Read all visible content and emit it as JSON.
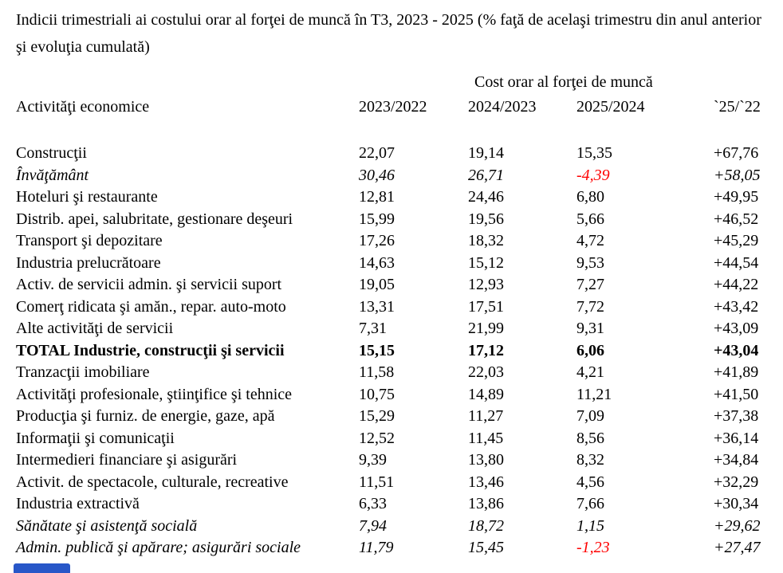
{
  "title": "Indicii trimestriali ai costului orar al forţei de muncă în T3, 2023 - 2025 (% faţă de acelaşi trimestru din anul anterior şi evoluţia cumulată)",
  "table": {
    "group_header": "Cost orar al forţei de muncă",
    "columns": [
      "Activităţi economice",
      "2023/2022",
      "2024/2023",
      "2025/2024",
      "`25/`22"
    ],
    "rows": [
      {
        "label": "Construcţii",
        "v1": "22,07",
        "v2": "19,14",
        "v3": "15,35",
        "v4": "+67,76",
        "style": ""
      },
      {
        "label": "Învăţământ",
        "v1": "30,46",
        "v2": "26,71",
        "v3": "-4,39",
        "v4": "+58,05",
        "style": "italic"
      },
      {
        "label": "Hoteluri şi restaurante",
        "v1": "12,81",
        "v2": "24,46",
        "v3": "6,80",
        "v4": "+49,95",
        "style": ""
      },
      {
        "label": "Distrib. apei, salubritate, gestionare deşeuri",
        "v1": "15,99",
        "v2": "19,56",
        "v3": "5,66",
        "v4": "+46,52",
        "style": ""
      },
      {
        "label": "Transport şi depozitare",
        "v1": "17,26",
        "v2": "18,32",
        "v3": "4,72",
        "v4": "+45,29",
        "style": ""
      },
      {
        "label": "Industria prelucrătoare",
        "v1": "14,63",
        "v2": "15,12",
        "v3": "9,53",
        "v4": "+44,54",
        "style": ""
      },
      {
        "label": "Activ. de servicii admin. şi servicii suport",
        "v1": "19,05",
        "v2": "12,93",
        "v3": "7,27",
        "v4": "+44,22",
        "style": ""
      },
      {
        "label": "Comerţ ridicata şi amăn., repar. auto-moto",
        "v1": "13,31",
        "v2": "17,51",
        "v3": "7,72",
        "v4": "+43,42",
        "style": ""
      },
      {
        "label": "Alte activităţi de servicii",
        "v1": "7,31",
        "v2": "21,99",
        "v3": "9,31",
        "v4": "+43,09",
        "style": ""
      },
      {
        "label": "TOTAL Industrie, construcţii şi servicii",
        "v1": "15,15",
        "v2": "17,12",
        "v3": "6,06",
        "v4": "+43,04",
        "style": "bold"
      },
      {
        "label": "Tranzacţii imobiliare",
        "v1": "11,58",
        "v2": "22,03",
        "v3": "4,21",
        "v4": "+41,89",
        "style": ""
      },
      {
        "label": "Activităţi profesionale, ştiinţifice şi tehnice",
        "v1": "10,75",
        "v2": "14,89",
        "v3": "11,21",
        "v4": "+41,50",
        "style": ""
      },
      {
        "label": "Producţia şi furniz. de energie, gaze, apă",
        "v1": "15,29",
        "v2": "11,27",
        "v3": "7,09",
        "v4": "+37,38",
        "style": ""
      },
      {
        "label": "Informaţii şi comunicaţii",
        "v1": "12,52",
        "v2": "11,45",
        "v3": "8,56",
        "v4": "+36,14",
        "style": ""
      },
      {
        "label": "Intermedieri financiare şi asigurări",
        "v1": "9,39",
        "v2": "13,80",
        "v3": "8,32",
        "v4": "+34,84",
        "style": ""
      },
      {
        "label": "Activit. de spectacole, culturale, recreative",
        "v1": "11,51",
        "v2": "13,46",
        "v3": "4,56",
        "v4": "+32,29",
        "style": ""
      },
      {
        "label": "Industria extractivă",
        "v1": "6,33",
        "v2": "13,86",
        "v3": "7,66",
        "v4": "+30,34",
        "style": ""
      },
      {
        "label": "Sănătate şi asistenţă socială",
        "v1": "7,94",
        "v2": "18,72",
        "v3": "1,15",
        "v4": "+29,62",
        "style": "italic"
      },
      {
        "label": "Admin. publică şi apărare; asigurări sociale",
        "v1": "11,79",
        "v2": "15,45",
        "v3": "-1,23",
        "v4": "+27,47",
        "style": "italic"
      }
    ]
  },
  "colors": {
    "text": "#000000",
    "negative": "#ff0000",
    "fragment_blue": "#2857c8"
  }
}
